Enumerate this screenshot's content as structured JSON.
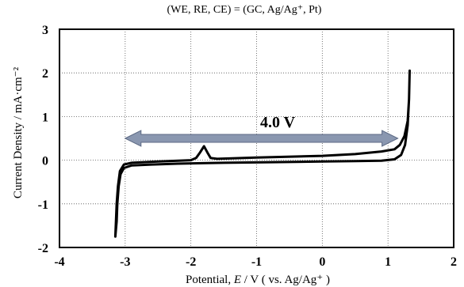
{
  "chart_data": {
    "type": "line",
    "subtitle": "(WE, RE, CE) = (GC, Ag/Ag⁺, Pt)",
    "xlabel": {
      "prefix": "Potential, ",
      "var": "E",
      "suffix": " / V ( vs. Ag/Ag⁺ )"
    },
    "ylabel": "Current Density / mA·cm⁻²",
    "xlim": [
      -4,
      2
    ],
    "ylim": [
      -2,
      3
    ],
    "xticks": [
      -4,
      -3,
      -2,
      -1,
      0,
      1,
      2
    ],
    "xtick_labels": [
      "-4",
      "-3",
      "-2",
      "-1",
      "0",
      "1",
      "2"
    ],
    "yticks": [
      -2,
      -1,
      0,
      1,
      2,
      3
    ],
    "ytick_labels": [
      "-2",
      "-1",
      "0",
      "1",
      "2",
      "3"
    ],
    "grid": {
      "x": true,
      "y": true,
      "style": "dotted"
    },
    "series": [
      {
        "color": "#000000",
        "points": [
          [
            -3.15,
            -1.75
          ],
          [
            -3.13,
            -1.4
          ],
          [
            -3.12,
            -1.0
          ],
          [
            -3.1,
            -0.6
          ],
          [
            -3.07,
            -0.32
          ],
          [
            -3.02,
            -0.18
          ],
          [
            -2.9,
            -0.12
          ],
          [
            -2.6,
            -0.1
          ],
          [
            -2.2,
            -0.08
          ],
          [
            -1.5,
            -0.06
          ],
          [
            -1.0,
            -0.05
          ],
          [
            0.0,
            -0.03
          ],
          [
            0.5,
            -0.02
          ],
          [
            0.9,
            -0.01
          ],
          [
            1.1,
            0.02
          ],
          [
            1.2,
            0.12
          ],
          [
            1.26,
            0.35
          ],
          [
            1.3,
            0.8
          ],
          [
            1.32,
            1.4
          ],
          [
            1.33,
            2.05
          ],
          [
            1.32,
            1.4
          ],
          [
            1.3,
            0.9
          ],
          [
            1.25,
            0.55
          ],
          [
            1.18,
            0.35
          ],
          [
            1.1,
            0.25
          ],
          [
            0.9,
            0.2
          ],
          [
            0.5,
            0.14
          ],
          [
            0.0,
            0.1
          ],
          [
            -1.0,
            0.06
          ],
          [
            -1.6,
            0.03
          ],
          [
            -1.7,
            0.05
          ],
          [
            -1.75,
            0.18
          ],
          [
            -1.8,
            0.32
          ],
          [
            -1.86,
            0.18
          ],
          [
            -1.92,
            0.05
          ],
          [
            -2.0,
            0.0
          ],
          [
            -2.5,
            -0.03
          ],
          [
            -2.9,
            -0.06
          ],
          [
            -3.02,
            -0.1
          ],
          [
            -3.08,
            -0.25
          ],
          [
            -3.11,
            -0.6
          ],
          [
            -3.13,
            -1.0
          ],
          [
            -3.14,
            -1.4
          ],
          [
            -3.15,
            -1.75
          ]
        ]
      }
    ],
    "annotations": [
      {
        "type": "double-arrow",
        "from": [
          -3.0,
          0.5
        ],
        "to": [
          1.15,
          0.5
        ],
        "color": "#8a97b0",
        "label": "4.0 V",
        "label_at": [
          -0.68,
          0.88
        ]
      }
    ]
  }
}
